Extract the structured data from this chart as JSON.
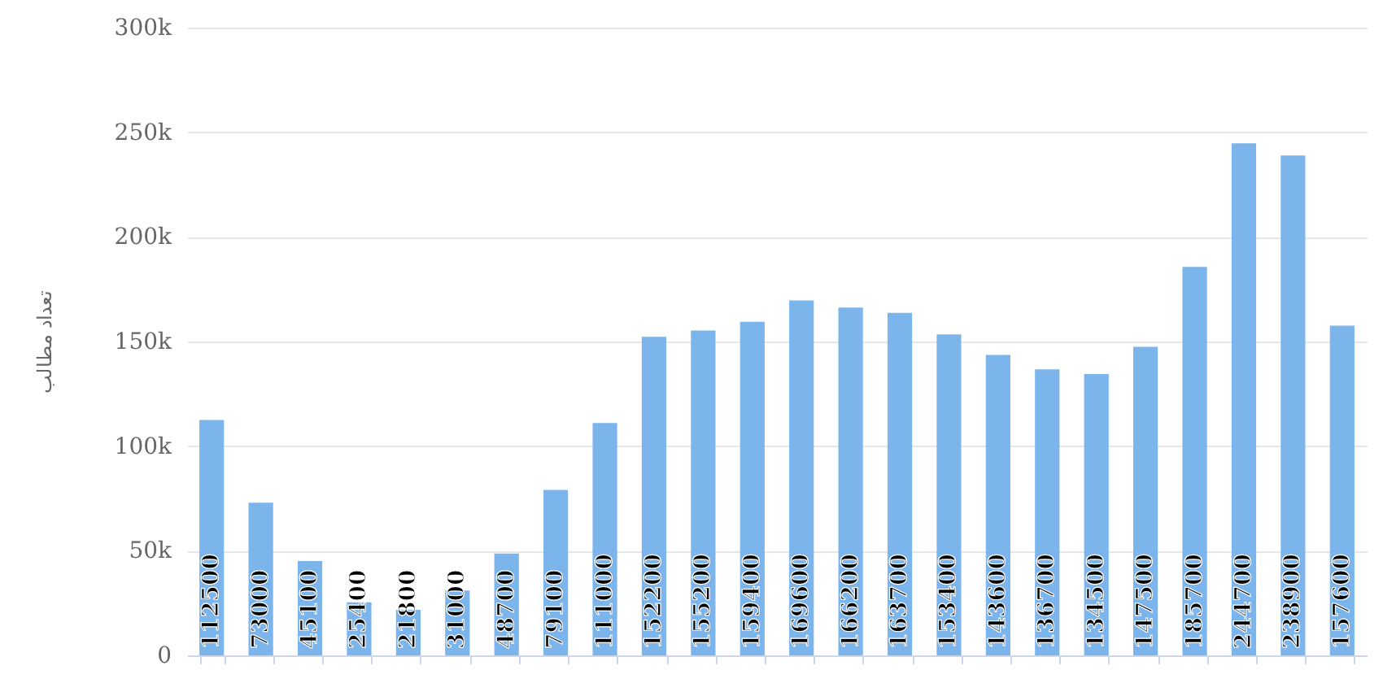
{
  "chart_data": {
    "type": "bar",
    "ylabel": "تعداد مطالب",
    "categories": [
      null,
      null,
      null,
      null,
      null,
      null,
      null,
      null,
      null,
      null,
      null,
      null,
      null,
      null,
      null,
      null,
      null,
      null,
      null,
      null,
      null,
      null,
      null,
      null
    ],
    "values": [
      112500,
      73000,
      45100,
      25400,
      21800,
      31000,
      48700,
      79100,
      111000,
      152200,
      155200,
      159400,
      169600,
      166200,
      163700,
      153400,
      143600,
      136700,
      134500,
      147500,
      185700,
      244700,
      238900,
      157600
    ],
    "color": "#7cb5ec",
    "ylim": [
      0,
      300000
    ],
    "yticks": [
      {
        "value": 0,
        "label": "0"
      },
      {
        "value": 50000,
        "label": "50k"
      },
      {
        "value": 100000,
        "label": "100k"
      },
      {
        "value": 150000,
        "label": "150k"
      },
      {
        "value": 200000,
        "label": "200k"
      },
      {
        "value": 250000,
        "label": "250k"
      },
      {
        "value": 300000,
        "label": "300k"
      }
    ],
    "grid": "y",
    "data_labels": true
  }
}
